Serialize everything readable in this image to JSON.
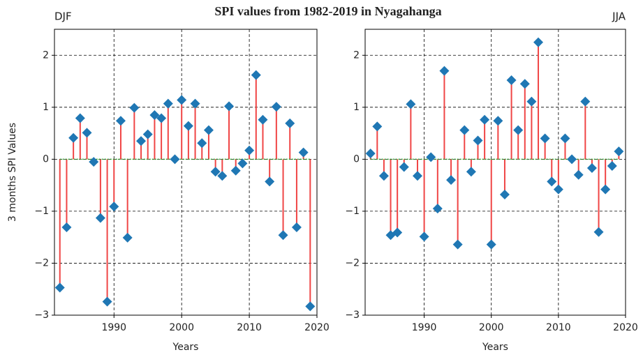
{
  "title": "SPI values from 1982-2019 in Nyagahanga",
  "chart_data": [
    {
      "type": "stem",
      "label": "DJF",
      "ylabel": "3 months SPI Values",
      "xlabel": "Years",
      "x": [
        1982,
        1983,
        1984,
        1985,
        1986,
        1987,
        1988,
        1989,
        1990,
        1991,
        1992,
        1993,
        1994,
        1995,
        1996,
        1997,
        1998,
        1999,
        2000,
        2001,
        2002,
        2003,
        2004,
        2005,
        2006,
        2007,
        2008,
        2009,
        2010,
        2011,
        2012,
        2013,
        2014,
        2015,
        2016,
        2017,
        2018,
        2019
      ],
      "values": [
        -2.47,
        -1.31,
        0.41,
        0.79,
        0.51,
        -0.05,
        -1.13,
        -2.74,
        -0.91,
        0.74,
        -1.51,
        0.99,
        0.35,
        0.48,
        0.85,
        0.79,
        1.07,
        0.0,
        1.14,
        0.64,
        1.07,
        0.31,
        0.56,
        -0.24,
        -0.32,
        1.02,
        -0.22,
        -0.08,
        0.17,
        1.62,
        0.76,
        -0.43,
        1.01,
        -1.46,
        0.69,
        -1.31,
        0.13,
        -2.83
      ],
      "color": "#1f77b4",
      "stem_color": "#f04545",
      "baseline_color": "#2ca02c",
      "xlim": [
        1981.2,
        2020
      ],
      "ylim": [
        -3,
        2.5
      ],
      "xticks": [
        1990,
        2000,
        2010,
        2020
      ],
      "yticks": [
        {
          "value": -3,
          "label": "−3"
        },
        {
          "value": -2,
          "label": "−2"
        },
        {
          "value": -1,
          "label": "−1"
        },
        0,
        1,
        2
      ],
      "grid": true
    },
    {
      "type": "stem",
      "label": "JJA",
      "xlabel": "Years",
      "x": [
        1982,
        1983,
        1984,
        1985,
        1986,
        1987,
        1988,
        1989,
        1990,
        1991,
        1992,
        1993,
        1994,
        1995,
        1996,
        1997,
        1998,
        1999,
        2000,
        2001,
        2002,
        2003,
        2004,
        2005,
        2006,
        2007,
        2008,
        2009,
        2010,
        2011,
        2012,
        2013,
        2014,
        2015,
        2016,
        2017,
        2018,
        2019
      ],
      "values": [
        0.11,
        0.63,
        -0.32,
        -1.46,
        -1.41,
        -0.15,
        1.06,
        -0.32,
        -1.49,
        0.04,
        -0.95,
        1.7,
        -0.4,
        -1.64,
        0.56,
        -0.24,
        0.36,
        0.76,
        -1.64,
        0.74,
        -0.68,
        1.52,
        0.56,
        1.45,
        1.11,
        2.25,
        0.4,
        -0.43,
        -0.58,
        0.4,
        0.0,
        -0.3,
        1.11,
        -0.17,
        -1.4,
        -0.58,
        -0.13,
        0.15
      ],
      "color": "#1f77b4",
      "stem_color": "#f04545",
      "baseline_color": "#2ca02c",
      "xlim": [
        1981.2,
        2020
      ],
      "ylim": [
        -3,
        2.5
      ],
      "xticks": [
        1990,
        2000,
        2010,
        2020
      ],
      "yticks": [
        {
          "value": -3,
          "label": "−3"
        },
        {
          "value": -2,
          "label": "−2"
        },
        {
          "value": -1,
          "label": "−1"
        },
        0,
        1,
        2
      ],
      "grid": true
    }
  ]
}
